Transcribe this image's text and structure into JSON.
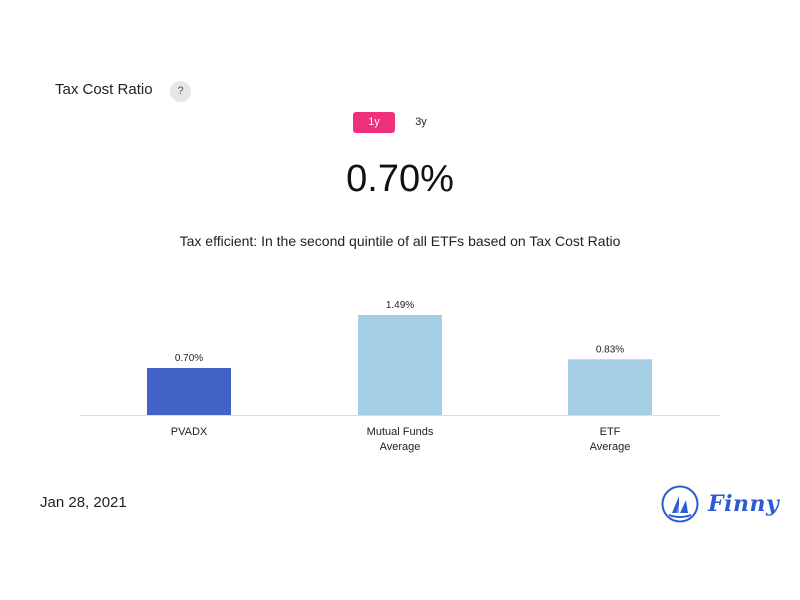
{
  "header": {
    "title": "Tax Cost Ratio",
    "help_label": "?"
  },
  "period": {
    "options": [
      "1y",
      "3y"
    ],
    "selected": "1y"
  },
  "big_value": "0.70%",
  "subtitle": "Tax efficient: In the second quintile of all ETFs based on Tax Cost Ratio",
  "chart_data": {
    "type": "bar",
    "categories": [
      [
        "PVADX"
      ],
      [
        "Mutual Funds",
        "Average"
      ],
      [
        "ETF",
        "Average"
      ]
    ],
    "values": [
      0.7,
      1.49,
      0.83
    ],
    "data_labels": [
      "0.70%",
      "1.49%",
      "0.83%"
    ],
    "colors": [
      "#4262c8",
      "#a6cfe6",
      "#a6cfe6"
    ],
    "ylim": [
      0,
      1.49
    ],
    "grid": false,
    "title": "",
    "xlabel": "",
    "ylabel": ""
  },
  "footer": {
    "date": "Jan 28, 2021",
    "brand": "Finny",
    "brand_color": "#2d5bd0"
  }
}
